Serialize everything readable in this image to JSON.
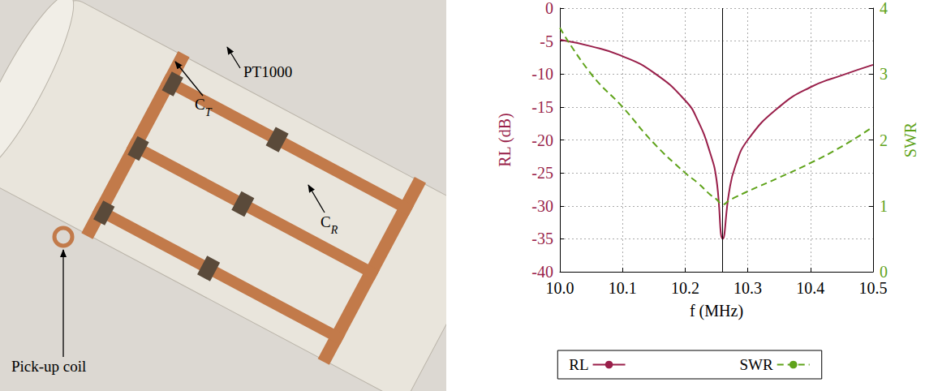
{
  "photo": {
    "labels": [
      {
        "text": "PT1000"
      },
      {
        "text": "C",
        "sub": "T"
      },
      {
        "text": "C",
        "sub": "R"
      },
      {
        "text": "Pick-up coil"
      }
    ]
  },
  "chart_data": {
    "type": "line",
    "x_label": "f (MHz)",
    "y_label": "RL (dB)",
    "y2_label": "SWR",
    "x": [
      10.0,
      10.05,
      10.1,
      10.15,
      10.2,
      10.22,
      10.24,
      10.25,
      10.26,
      10.27,
      10.28,
      10.3,
      10.35,
      10.4,
      10.45,
      10.5
    ],
    "series": [
      {
        "name": "RL",
        "color": "#991f4a",
        "line_style": "solid",
        "values": [
          -4.8,
          -5.8,
          -7.3,
          -9.8,
          -14,
          -17,
          -22,
          -26,
          -35,
          -28,
          -24,
          -20,
          -15,
          -12,
          -10.2,
          -8.6
        ]
      },
      {
        "name": "SWR",
        "color": "#5fa31a",
        "line_style": "dashed",
        "axis": "y2",
        "values": [
          3.7,
          3.0,
          2.5,
          1.95,
          1.5,
          1.35,
          1.17,
          1.1,
          1.02,
          1.08,
          1.13,
          1.22,
          1.43,
          1.65,
          1.9,
          2.2
        ]
      }
    ],
    "xlim": [
      10.0,
      10.5
    ],
    "xticks": [
      {
        "value": 10.0,
        "label": "10.0"
      },
      10.1,
      10.2,
      10.3,
      10.4,
      10.5
    ],
    "ylim": [
      -40,
      0
    ],
    "yticks": [
      -40,
      -35,
      -30,
      -25,
      -20,
      -15,
      -10,
      -5,
      0
    ],
    "y2lim": [
      0,
      4
    ],
    "y2ticks": [
      0,
      1,
      2,
      3,
      4
    ],
    "resonance": 10.26,
    "grid": true,
    "legend": "bottom"
  }
}
